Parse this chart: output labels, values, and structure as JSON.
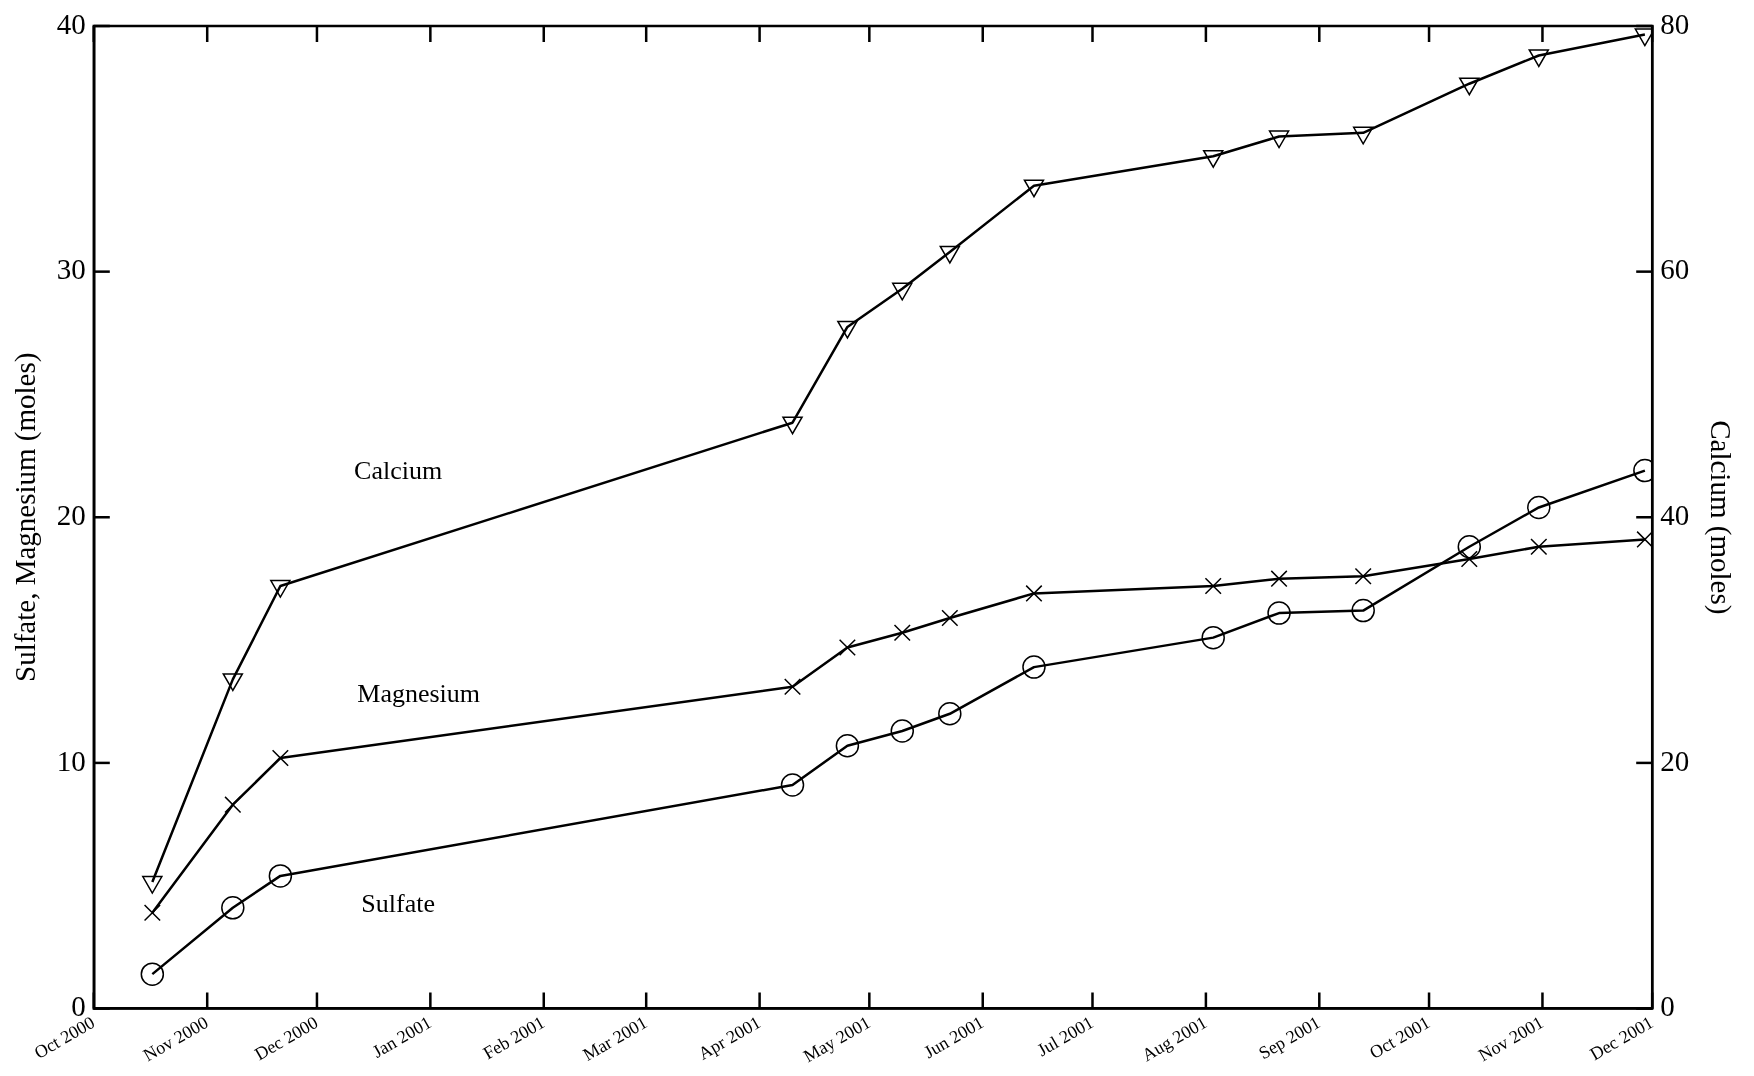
{
  "chart_data": {
    "type": "line",
    "ylabel": "Sulfate, Magnesium (moles)",
    "y2label": "Calcium (moles)",
    "x": [
      "2000-10-17",
      "2000-11-08",
      "2000-11-21",
      "2001-04-10",
      "2001-04-25",
      "2001-05-10",
      "2001-05-23",
      "2001-06-15",
      "2001-08-03",
      "2001-08-21",
      "2001-09-13",
      "2001-10-12",
      "2001-10-31",
      "2001-11-29"
    ],
    "series": [
      {
        "name": "Calcium",
        "color": "#000000",
        "axis": "y2",
        "marker": "triangle",
        "values": [
          10.3,
          26.8,
          34.4,
          47.7,
          55.5,
          58.6,
          61.6,
          67.0,
          69.4,
          71.0,
          71.3,
          75.3,
          77.6,
          79.3
        ]
      },
      {
        "name": "Magnesium",
        "color": "#000000",
        "marker": "cross",
        "values": [
          3.9,
          8.3,
          10.2,
          13.1,
          14.7,
          15.3,
          15.9,
          16.9,
          17.2,
          17.5,
          17.6,
          18.3,
          18.8,
          19.1
        ]
      },
      {
        "name": "Sulfate",
        "color": "#000000",
        "marker": "circle",
        "values": [
          1.4,
          4.1,
          5.4,
          9.1,
          10.7,
          11.3,
          12.0,
          13.9,
          15.1,
          16.1,
          16.2,
          18.8,
          20.4,
          21.9
        ]
      }
    ],
    "xlim": [
      "2000-10-01",
      "2001-12-01"
    ],
    "xticks": [
      {
        "value": "2000-10-01",
        "label": "Oct 2000"
      },
      {
        "value": "2000-11-01",
        "label": "Nov 2000"
      },
      {
        "value": "2000-12-01",
        "label": "Dec 2000"
      },
      {
        "value": "2001-01-01",
        "label": "Jan 2001"
      },
      {
        "value": "2001-02-01",
        "label": "Feb 2001"
      },
      {
        "value": "2001-03-01",
        "label": "Mar 2001"
      },
      {
        "value": "2001-04-01",
        "label": "Apr 2001"
      },
      {
        "value": "2001-05-01",
        "label": "May 2001"
      },
      {
        "value": "2001-06-01",
        "label": "Jun 2001"
      },
      {
        "value": "2001-07-01",
        "label": "Jul 2001"
      },
      {
        "value": "2001-08-01",
        "label": "Aug 2001"
      },
      {
        "value": "2001-09-01",
        "label": "Sep 2001"
      },
      {
        "value": "2001-10-01",
        "label": "Oct 2001"
      },
      {
        "value": "2001-11-01",
        "label": "Nov 2001"
      },
      {
        "value": "2001-12-01",
        "label": "Dec 2001"
      }
    ],
    "ylim": [
      0,
      40
    ],
    "yticks": [
      0,
      10,
      20,
      30,
      40
    ],
    "y2lim": [
      0,
      80
    ],
    "y2ticks": [
      0,
      20,
      40,
      60,
      80
    ],
    "grid": false,
    "legend": false,
    "line_style": "solid"
  }
}
